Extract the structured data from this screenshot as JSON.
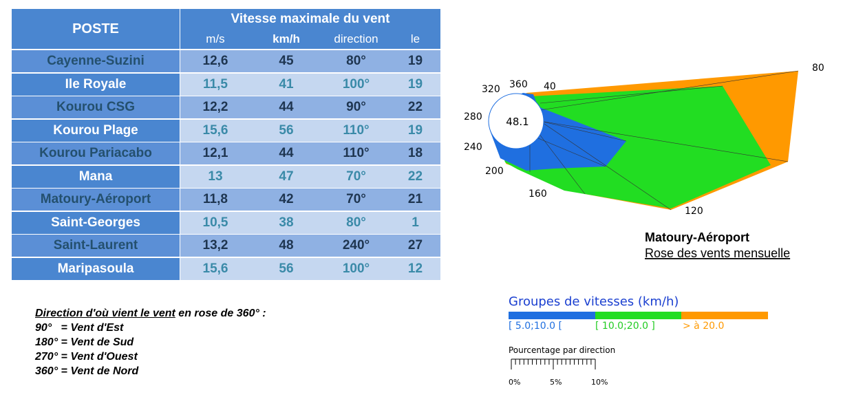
{
  "table": {
    "header": {
      "poste": "POSTE",
      "group": "Vitesse maximale du vent",
      "columns": [
        "m/s",
        "km/h",
        "direction",
        "le"
      ]
    },
    "rows": [
      [
        "Cayenne-Suzini",
        "12,6",
        "45",
        "80°",
        "19"
      ],
      [
        "Ile Royale",
        "11,5",
        "41",
        "100°",
        "19"
      ],
      [
        "Kourou CSG",
        "12,2",
        "44",
        "90°",
        "22"
      ],
      [
        "Kourou Plage",
        "15,6",
        "56",
        "110°",
        "19"
      ],
      [
        "Kourou Pariacabo",
        "12,1",
        "44",
        "110°",
        "18"
      ],
      [
        "Mana",
        "13",
        "47",
        "70°",
        "22"
      ],
      [
        "Matoury-Aéroport",
        "11,8",
        "42",
        "70°",
        "21"
      ],
      [
        "Saint-Georges",
        "10,5",
        "38",
        "80°",
        "1"
      ],
      [
        "Saint-Laurent",
        "13,2",
        "48",
        "240°",
        "27"
      ],
      [
        "Maripasoula",
        "15,6",
        "56",
        "100°",
        "12"
      ]
    ]
  },
  "note": {
    "title": "Direction d'où vient le vent",
    "title_rest": " en rose de 360° :",
    "lines": [
      "90°   = Vent d'Est",
      "180° = Vent de Sud",
      "270° = Vent d'Ouest",
      "360° = Vent de Nord"
    ]
  },
  "windrose": {
    "station": "Matoury-Aéroport",
    "subtitle": "Rose des vents mensuelle",
    "center": "48.1",
    "directions": [
      "320",
      "360",
      "40",
      "80",
      "280",
      "240",
      "200",
      "160",
      "120"
    ],
    "legend_title": "Groupes de vitesses (km/h)",
    "groups": [
      "[ 5.0;10.0 [",
      "[ 10.0;20.0 ]",
      "> à 20.0"
    ],
    "scale_title": "Pourcentage par direction",
    "scale_labels": [
      "0%",
      "5%",
      "10%"
    ]
  }
}
